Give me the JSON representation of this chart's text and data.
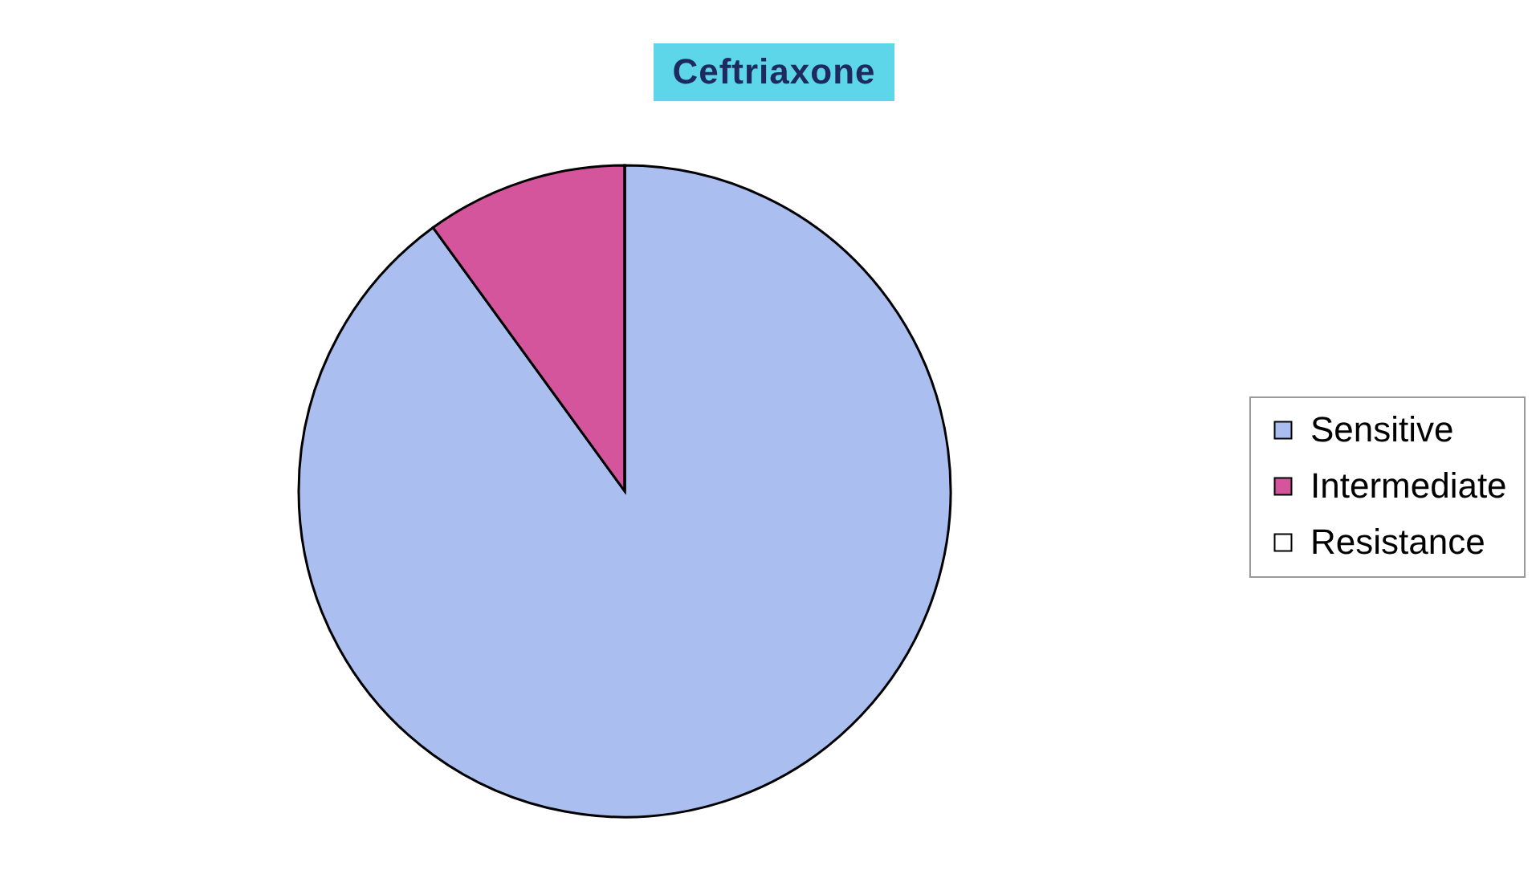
{
  "chart_data": {
    "type": "pie",
    "title": "Ceftriaxone",
    "categories": [
      "Sensitive",
      "Intermediate",
      "Resistance"
    ],
    "values": [
      90,
      10,
      0
    ],
    "colors": [
      "#abbef0",
      "#d4559c",
      "#ffffff"
    ],
    "legend": "right"
  }
}
